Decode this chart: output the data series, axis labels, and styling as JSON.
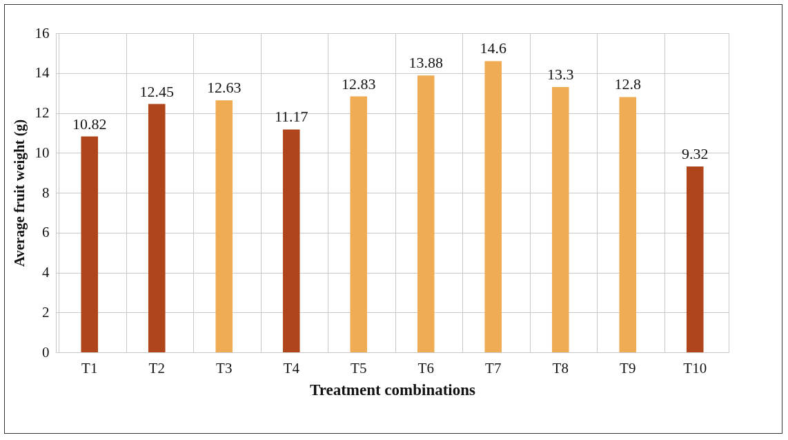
{
  "chart_data": {
    "type": "bar",
    "xlabel": "Treatment combinations",
    "ylabel": "Average fruit weight (g)",
    "categories": [
      "T1",
      "T2",
      "T3",
      "T4",
      "T5",
      "T6",
      "T7",
      "T8",
      "T9",
      "T10"
    ],
    "values": [
      10.82,
      12.45,
      12.63,
      11.17,
      12.83,
      13.88,
      14.6,
      13.3,
      12.8,
      9.32
    ],
    "colors": [
      "#b0441b",
      "#b0441b",
      "#f0ab55",
      "#b0441b",
      "#f0ab55",
      "#f0ab55",
      "#f0ab55",
      "#f0ab55",
      "#f0ab55",
      "#b0441b"
    ],
    "ylim": [
      0,
      16
    ],
    "yticks": [
      0,
      2,
      4,
      6,
      8,
      10,
      12,
      14,
      16
    ],
    "grid": true,
    "data_labels": true
  }
}
